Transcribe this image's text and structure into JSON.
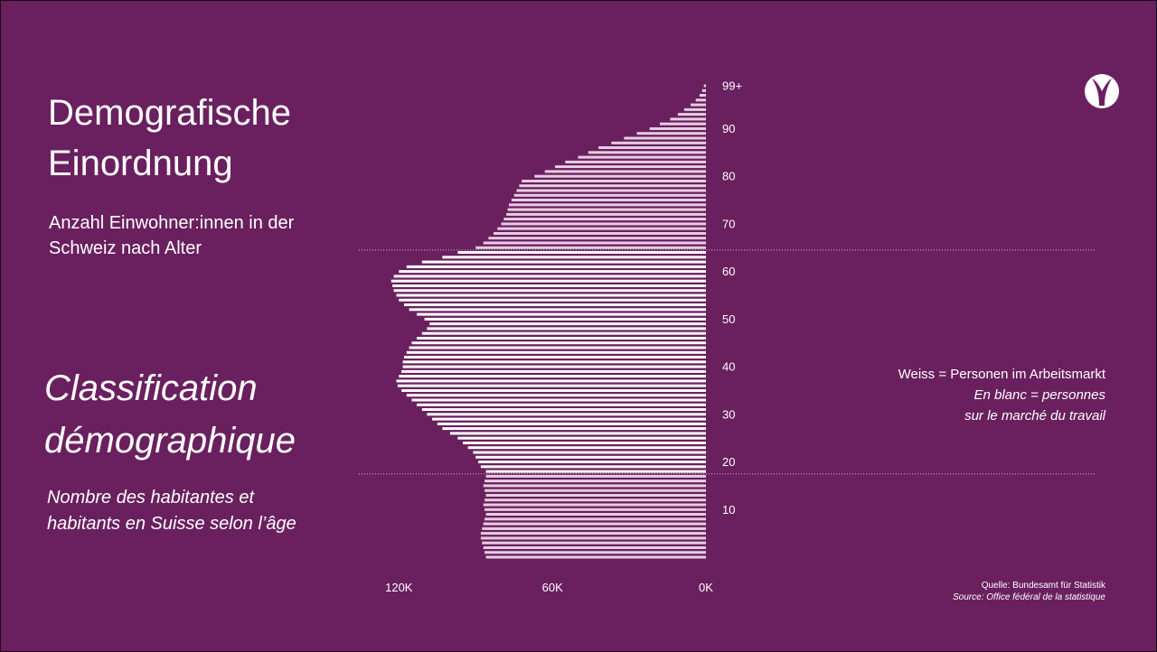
{
  "slide": {
    "title_de": "Demografische Einordnung",
    "subtitle_de": "Anzahl Einwohner:innen in der Schweiz nach Alter",
    "title_fr": "Classification démographique",
    "subtitle_fr": "Nombre des habitantes et habitants en Suisse selon l’âge",
    "legend_de": "Weiss = Personen im Arbeitsmarkt",
    "legend_fr_line1": "En blanc = personnes",
    "legend_fr_line2": "sur le marché du travail",
    "source_de": "Quelle: Bundesamt für Statistik",
    "source_fr": "Source: Office fédéral de la statistique",
    "logo_icon": "y-logo-icon"
  },
  "colors": {
    "background": "#6a205f",
    "workforce_bars": "#ffffff",
    "other_bars": "#e7cde2",
    "guideline": "#d8b8d2"
  },
  "chart_data": {
    "type": "bar",
    "orientation": "horizontal",
    "x_tick_labels": [
      "120K",
      "60K",
      "0K"
    ],
    "x_ticks": [
      120000,
      60000,
      0
    ],
    "y_tick_labels": [
      "99+",
      "90",
      "80",
      "70",
      "60",
      "50",
      "40",
      "30",
      "20",
      "10"
    ],
    "y_ticks": [
      99,
      90,
      80,
      70,
      60,
      50,
      40,
      30,
      20,
      10
    ],
    "xlim": [
      130000,
      0
    ],
    "ylim": [
      0,
      99
    ],
    "workforce_age_range": [
      18,
      64
    ],
    "series": [
      {
        "ages": [
          0,
          1,
          2,
          3,
          4,
          5,
          6,
          7,
          8,
          9,
          10,
          11,
          12,
          13,
          14,
          15,
          16,
          17,
          18,
          19,
          20,
          21,
          22,
          23,
          24,
          25,
          26,
          27,
          28,
          29,
          30,
          31,
          32,
          33,
          34,
          35,
          36,
          37,
          38,
          39,
          40,
          41,
          42,
          43,
          44,
          45,
          46,
          47,
          48,
          49,
          50,
          51,
          52,
          53,
          54,
          55,
          56,
          57,
          58,
          59,
          60,
          61,
          62,
          63,
          64,
          65,
          66,
          67,
          68,
          69,
          70,
          71,
          72,
          73,
          74,
          75,
          76,
          77,
          78,
          79,
          80,
          81,
          82,
          83,
          84,
          85,
          86,
          87,
          88,
          89,
          90,
          91,
          92,
          93,
          94,
          95,
          96,
          97,
          98,
          99
        ],
        "values": [
          86000,
          86500,
          87000,
          87500,
          88000,
          88000,
          87500,
          87000,
          86500,
          86000,
          86500,
          87000,
          86500,
          86000,
          86500,
          87000,
          86500,
          86000,
          86000,
          88000,
          89000,
          90000,
          91000,
          93000,
          95000,
          97000,
          100000,
          103000,
          105000,
          107000,
          109000,
          111000,
          113000,
          115000,
          117000,
          119000,
          120500,
          121000,
          120000,
          119000,
          118500,
          118500,
          118000,
          117000,
          116000,
          115000,
          113000,
          111000,
          109000,
          108000,
          110000,
          113000,
          116000,
          118000,
          120000,
          121000,
          122000,
          122500,
          123000,
          122000,
          120000,
          117000,
          111000,
          103000,
          97000,
          90000,
          87000,
          85000,
          83000,
          81500,
          80000,
          79000,
          78000,
          77500,
          77000,
          76000,
          75000,
          74000,
          73000,
          72000,
          67000,
          63000,
          59000,
          55000,
          50000,
          46000,
          42000,
          37000,
          32000,
          27000,
          22000,
          18000,
          14000,
          11000,
          8500,
          6000,
          4000,
          2500,
          1500,
          800
        ]
      }
    ]
  }
}
